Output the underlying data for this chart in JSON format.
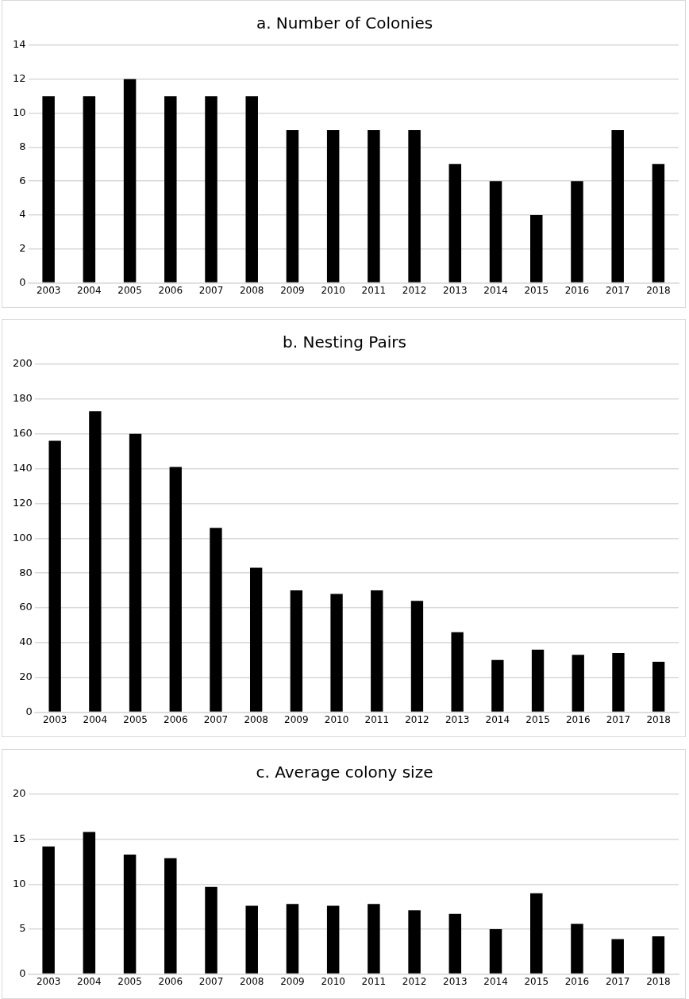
{
  "chart_data": [
    {
      "type": "bar",
      "title": "a. Number of Colonies",
      "categories": [
        "2003",
        "2004",
        "2005",
        "2006",
        "2007",
        "2008",
        "2009",
        "2010",
        "2011",
        "2012",
        "2013",
        "2014",
        "2015",
        "2016",
        "2017",
        "2018"
      ],
      "color": "#000000",
      "values": [
        11,
        11,
        12,
        11,
        11,
        11,
        9,
        9,
        9,
        9,
        7,
        6,
        4,
        6,
        9,
        7
      ],
      "ylim": [
        0,
        14
      ],
      "yticks": [
        0,
        2,
        4,
        6,
        8,
        10,
        12,
        14
      ],
      "grid": "y",
      "legend": false
    },
    {
      "type": "bar",
      "title": "b. Nesting Pairs",
      "categories": [
        "2003",
        "2004",
        "2005",
        "2006",
        "2007",
        "2008",
        "2009",
        "2010",
        "2011",
        "2012",
        "2013",
        "2014",
        "2015",
        "2016",
        "2017",
        "2018"
      ],
      "color": "#000000",
      "values": [
        156,
        173,
        160,
        141,
        106,
        83,
        70,
        68,
        70,
        64,
        46,
        30,
        36,
        33,
        34,
        29
      ],
      "ylim": [
        0,
        200
      ],
      "yticks": [
        0,
        20,
        40,
        60,
        80,
        100,
        120,
        140,
        160,
        180,
        200
      ],
      "grid": "y",
      "legend": false
    },
    {
      "type": "bar",
      "title": "c. Average colony size",
      "categories": [
        "2003",
        "2004",
        "2005",
        "2006",
        "2007",
        "2008",
        "2009",
        "2010",
        "2011",
        "2012",
        "2013",
        "2014",
        "2015",
        "2016",
        "2017",
        "2018"
      ],
      "color": "#000000",
      "values": [
        14.2,
        15.8,
        13.3,
        12.9,
        9.7,
        7.6,
        7.8,
        7.6,
        7.8,
        7.1,
        6.7,
        5.0,
        9.0,
        5.6,
        3.9,
        4.2
      ],
      "ylim": [
        0,
        20
      ],
      "yticks": [
        0,
        5,
        10,
        15,
        20
      ],
      "grid": "y",
      "legend": false
    }
  ]
}
